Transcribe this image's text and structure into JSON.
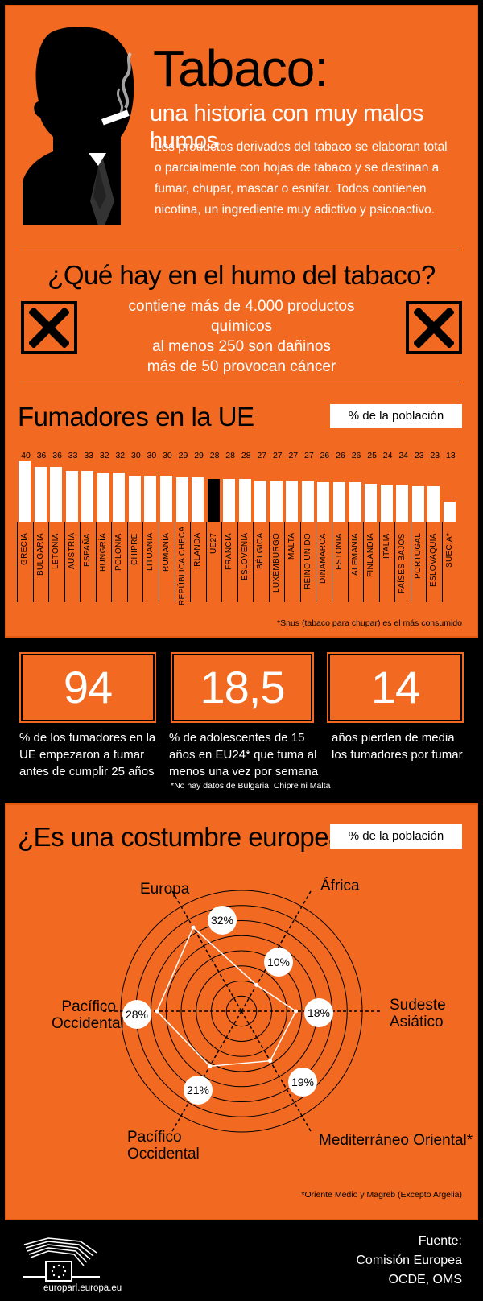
{
  "header": {
    "title": "Tabaco:",
    "subtitle": "una historia con muy malos humos",
    "intro": "Los productos derivados del tabaco se elaboran total o parcialmente con hojas de tabaco y se destinan a fumar, chupar, mascar o esnifar. Todos contienen nicotina, un ingrediente muy adictivo y psicoactivo."
  },
  "smoke": {
    "title": "¿Qué hay en el humo del tabaco?",
    "lines": [
      "contiene más de 4.000 productos químicos",
      "al menos 250 son dañinos",
      "más de 50 provocan cáncer"
    ],
    "icon_left": "harmful-x-icon",
    "icon_right": "harmful-x-icon"
  },
  "smokers": {
    "title": "Fumadores en la UE",
    "badge": "% de la población",
    "footnote": "*Snus (tabaco para chupar) es el más consumido"
  },
  "stats": [
    {
      "value": "94",
      "text": "% de los fumadores en la UE empezaron a fumar antes de cumplir 25 años",
      "note": ""
    },
    {
      "value": "18,5",
      "text": "% de adolescentes de 15 años en EU24* que fuma al menos una vez por semana",
      "note": "*No hay datos de Bulgaria, Chipre ni Malta"
    },
    {
      "value": "14",
      "text": "años pierden de media los fumadores por fumar",
      "note": ""
    }
  ],
  "world": {
    "title": "¿Es una costumbre europea?",
    "badge": "% de la población",
    "footnote": "*Oriente Medio y Magreb (Excepto Argelia)"
  },
  "footer": {
    "source_label": "Fuente:",
    "source_lines": [
      "Comisión Europea",
      "OCDE, OMS"
    ],
    "site": "europarl.europa.eu",
    "logo": "european-parliament-logo"
  },
  "colors": {
    "background": "#000000",
    "panel": "#f26a21",
    "bar": "#ffffff",
    "highlight_bar": "#000000"
  },
  "chart_data": [
    {
      "type": "bar",
      "title": "Fumadores en la UE",
      "ylabel": "% de la población",
      "categories": [
        "GRECIA",
        "BULGARIA",
        "LETONIA",
        "AUSTRIA",
        "ESPAÑA",
        "HUNGRÍA",
        "POLONIA",
        "CHIPRE",
        "LITUANIA",
        "RUMANÍA",
        "REPÚBLICA CHECA",
        "IRLANDA",
        "UE27",
        "FRANCIA",
        "ESLOVENIA",
        "BÉLGICA",
        "LUXEMBURGO",
        "MALTA",
        "REINO UNIDO",
        "DINAMARCA",
        "ESTONIA",
        "ALEMANIA",
        "FINLANDIA",
        "ITALIA",
        "PAÍSES BAJOS",
        "PORTUGAL",
        "ESLOVAQUIA",
        "SUECIA*"
      ],
      "values": [
        40,
        36,
        36,
        33,
        33,
        32,
        32,
        30,
        30,
        30,
        29,
        29,
        28,
        28,
        28,
        27,
        27,
        27,
        27,
        26,
        26,
        26,
        25,
        24,
        24,
        23,
        23,
        13
      ],
      "highlight": "UE27",
      "ylim": [
        0,
        40
      ]
    },
    {
      "type": "radar",
      "title": "¿Es una costumbre europea?",
      "categories": [
        "Europa",
        "África",
        "Sudeste Asiático",
        "Mediterráneo Oriental*",
        "Pacífico Occidental",
        "Pacífico Occidental"
      ],
      "values": [
        32,
        10,
        18,
        19,
        21,
        28
      ],
      "labels": [
        "32%",
        "10%",
        "18%",
        "19%",
        "21%",
        "28%"
      ],
      "rlim": [
        0,
        40
      ]
    }
  ]
}
